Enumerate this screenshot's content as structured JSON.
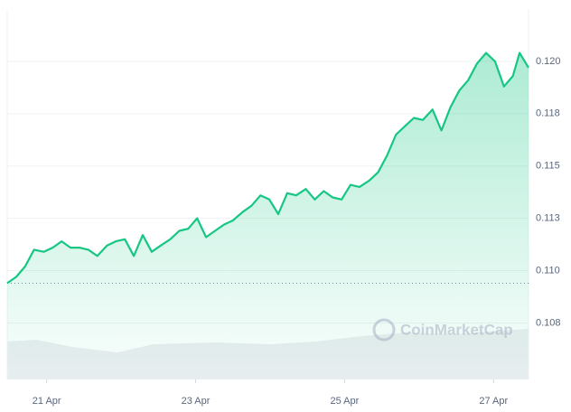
{
  "chart_data": {
    "type": "line",
    "watermark": "CoinMarketCap",
    "x": [
      20.47,
      20.59,
      20.71,
      20.83,
      20.96,
      21.08,
      21.2,
      21.32,
      21.44,
      21.56,
      21.68,
      21.81,
      21.93,
      22.05,
      22.17,
      22.29,
      22.41,
      22.53,
      22.66,
      22.78,
      22.9,
      23.02,
      23.14,
      23.26,
      23.38,
      23.5,
      23.63,
      23.75,
      23.87,
      23.99,
      24.11,
      24.23,
      24.35,
      24.48,
      24.6,
      24.72,
      24.84,
      24.96,
      25.08,
      25.2,
      25.33,
      25.45,
      25.57,
      25.69,
      25.81,
      25.93,
      26.05,
      26.18,
      26.3,
      26.42,
      26.54,
      26.66,
      26.78,
      26.9,
      27.02,
      27.14,
      27.26,
      27.35,
      27.47
    ],
    "series": [
      {
        "color": "#16c784",
        "values": [
          0.1094,
          0.1097,
          0.1102,
          0.111,
          0.1109,
          0.1111,
          0.1114,
          0.1111,
          0.1111,
          0.111,
          0.1107,
          0.1112,
          0.1114,
          0.1115,
          0.1107,
          0.1117,
          0.1109,
          0.1112,
          0.1115,
          0.1119,
          0.112,
          0.1125,
          0.1116,
          0.1119,
          0.1122,
          0.1124,
          0.1128,
          0.1131,
          0.1136,
          0.1134,
          0.1127,
          0.1137,
          0.1136,
          0.1139,
          0.1134,
          0.1138,
          0.1135,
          0.1134,
          0.1141,
          0.114,
          0.1143,
          0.1147,
          0.1155,
          0.1165,
          0.1169,
          0.1173,
          0.1172,
          0.1177,
          0.1167,
          0.1178,
          0.1186,
          0.1191,
          0.1199,
          0.1204,
          0.12,
          0.1188,
          0.1193,
          0.1204,
          0.1197
        ]
      }
    ],
    "baseline": 0.1094,
    "xlim": [
      20.47,
      27.47
    ],
    "xticks": [
      {
        "value": 21,
        "label": "21 Apr"
      },
      {
        "value": 23,
        "label": "23 Apr"
      },
      {
        "value": 25,
        "label": "25 Apr"
      },
      {
        "value": 27,
        "label": "27 Apr"
      }
    ],
    "ylim": [
      0.1048,
      0.1225
    ],
    "yticks": [
      {
        "value": 0.1075,
        "label": "0.108"
      },
      {
        "value": 0.11,
        "label": "0.110"
      },
      {
        "value": 0.1125,
        "label": "0.113"
      },
      0.115,
      {
        "value": 0.1175,
        "label": "0.118"
      },
      {
        "value": 0.12,
        "label": "0.120"
      }
    ],
    "grid": true
  }
}
